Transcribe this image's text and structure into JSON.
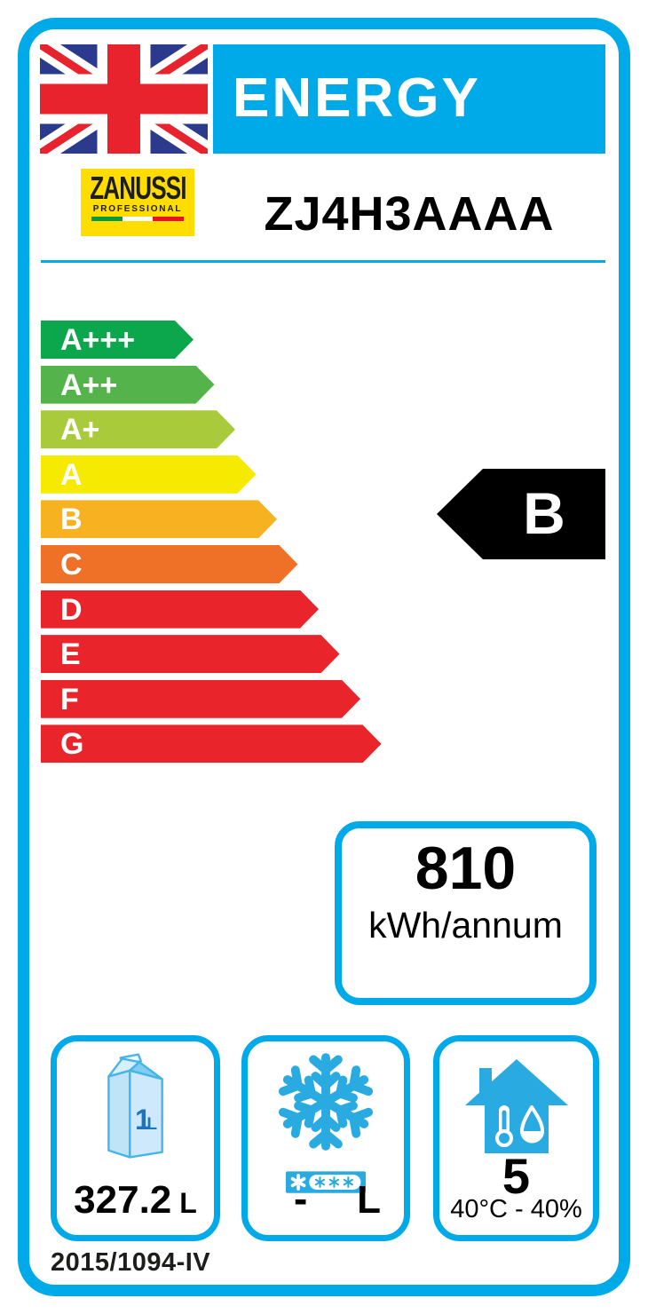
{
  "colors": {
    "accent_cyan": "#00a9e8",
    "icon_cyan": "#29abe2",
    "flag_navy": "#2b3a8c",
    "flag_red": "#e8232d",
    "zanussi_yellow": "#ffdd00",
    "selected_arrow": "#000000",
    "carton_text_blue": "#1c75bc"
  },
  "header": {
    "title": "ENERGY",
    "brand": {
      "name": "ZANUSSI",
      "subtitle": "PROFESSIONAL"
    },
    "model": "ZJ4H3AAAA"
  },
  "rating": {
    "selected_grade": "B",
    "scale": [
      {
        "grade": "A+++",
        "color": "#0ca64d"
      },
      {
        "grade": "A++",
        "color": "#54b44b"
      },
      {
        "grade": "A+",
        "color": "#a9ca3a"
      },
      {
        "grade": "A",
        "color": "#f6ea00"
      },
      {
        "grade": "B",
        "color": "#f6b221"
      },
      {
        "grade": "C",
        "color": "#ee7127"
      },
      {
        "grade": "D",
        "color": "#e9242b"
      },
      {
        "grade": "E",
        "color": "#e9242b"
      },
      {
        "grade": "F",
        "color": "#e9242b"
      },
      {
        "grade": "G",
        "color": "#e9242b"
      }
    ]
  },
  "energy": {
    "value": "810",
    "unit": "kWh/annum"
  },
  "compartments": {
    "fridge": {
      "carton": {
        "value": "1",
        "unit": "L"
      },
      "volume": "327.2",
      "unit": "L"
    },
    "freezer": {
      "volume": "-",
      "unit": "L"
    },
    "climate": {
      "rating": "5",
      "condition": "40°C - 40%"
    }
  },
  "regulation": "2015/1094-IV"
}
